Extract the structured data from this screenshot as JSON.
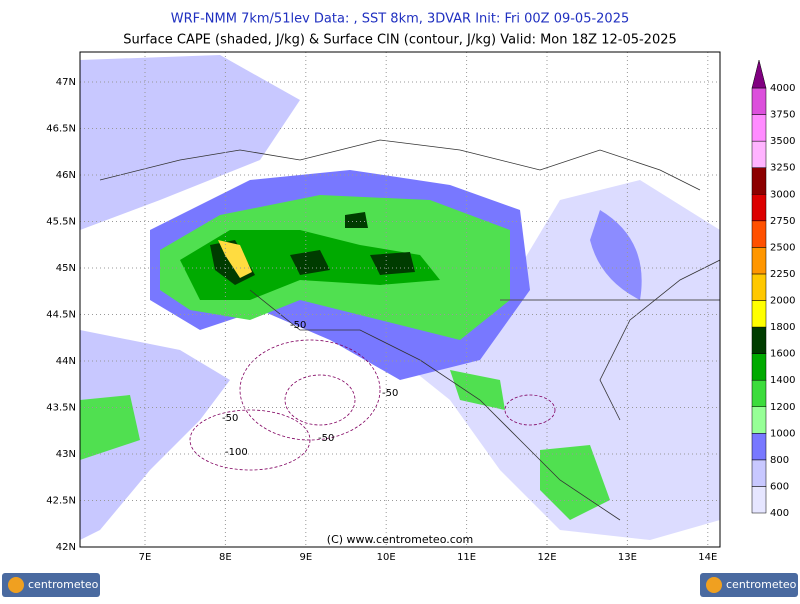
{
  "header": {
    "title": "WRF-NMM 7km/51lev  Data: , SST 8km, 3DVAR  Init: Fri 00Z 09-05-2025",
    "subtitle": "Surface CAPE (shaded, J/kg) & Surface CIN (contour, J/kg)  Valid: Mon 18Z 12-05-2025"
  },
  "map": {
    "lat_labels": [
      "47N",
      "46.5N",
      "46N",
      "45.5N",
      "45N",
      "44.5N",
      "44N",
      "43.5N",
      "43N",
      "42.5N",
      "42N"
    ],
    "lon_labels": [
      "7E",
      "8E",
      "9E",
      "10E",
      "11E",
      "12E",
      "13E",
      "14E"
    ],
    "contour_labels": [
      "-50",
      "-50",
      "-50",
      "-50",
      "-100"
    ],
    "credit": "(C) www.centrometeo.com"
  },
  "colorbar": {
    "levels": [
      400,
      600,
      800,
      1000,
      1200,
      1400,
      1600,
      1800,
      2000,
      2250,
      2500,
      2750,
      3000,
      3250,
      3500,
      3750,
      4000
    ],
    "colors": [
      "#e6e6ff",
      "#c8c8ff",
      "#7878ff",
      "#96ff96",
      "#3cdc3c",
      "#00aa00",
      "#003c00",
      "#ffff00",
      "#ffc800",
      "#ff9600",
      "#ff5000",
      "#dc0000",
      "#8c0000",
      "#ffb4ff",
      "#ff8cff",
      "#dc50dc",
      "#800080"
    ]
  },
  "logos": [
    "centrometeo",
    "centrometeo"
  ]
}
